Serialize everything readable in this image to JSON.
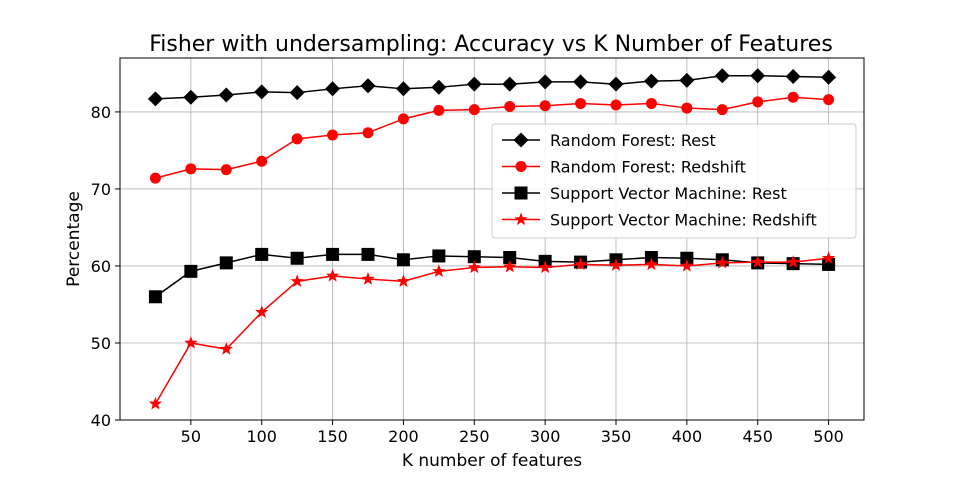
{
  "chart_data": {
    "type": "line",
    "title": "Fisher with undersampling: Accuracy vs K Number of Features",
    "xlabel": "K number of features",
    "ylabel": "Percentage",
    "xlim": [
      0,
      525
    ],
    "ylim": [
      40,
      87
    ],
    "x_ticks": [
      50,
      100,
      150,
      200,
      250,
      300,
      350,
      400,
      450,
      500
    ],
    "y_ticks": [
      40,
      50,
      60,
      70,
      80
    ],
    "grid": true,
    "legend_position": "center-right",
    "x": [
      25,
      50,
      75,
      100,
      125,
      150,
      175,
      200,
      225,
      250,
      275,
      300,
      325,
      350,
      375,
      400,
      425,
      450,
      475,
      500
    ],
    "series": [
      {
        "name": "Random Forest: Rest",
        "color": "#000000",
        "marker": "diamond",
        "values": [
          81.7,
          81.9,
          82.2,
          82.6,
          82.5,
          83.0,
          83.4,
          83.0,
          83.2,
          83.6,
          83.6,
          83.9,
          83.9,
          83.6,
          84.0,
          84.1,
          84.7,
          84.7,
          84.6,
          84.5
        ]
      },
      {
        "name": "Random Forest: Redshift",
        "color": "#ff0000",
        "marker": "circle",
        "values": [
          71.4,
          72.6,
          72.5,
          73.6,
          76.5,
          77.0,
          77.3,
          79.1,
          80.2,
          80.3,
          80.7,
          80.8,
          81.1,
          80.9,
          81.1,
          80.5,
          80.3,
          81.3,
          81.9,
          81.6
        ]
      },
      {
        "name": "Support Vector Machine: Rest",
        "color": "#000000",
        "marker": "square",
        "values": [
          56.0,
          59.3,
          60.4,
          61.5,
          61.0,
          61.5,
          61.5,
          60.8,
          61.3,
          61.2,
          61.1,
          60.6,
          60.5,
          60.8,
          61.1,
          61.0,
          60.8,
          60.4,
          60.3,
          60.2
        ]
      },
      {
        "name": "Support Vector Machine: Redshift",
        "color": "#ff0000",
        "marker": "star",
        "values": [
          42.1,
          50.0,
          49.2,
          54.0,
          58.0,
          58.7,
          58.3,
          58.0,
          59.3,
          59.8,
          59.9,
          59.8,
          60.2,
          60.1,
          60.2,
          60.0,
          60.4,
          60.5,
          60.5,
          61.0
        ]
      }
    ]
  }
}
